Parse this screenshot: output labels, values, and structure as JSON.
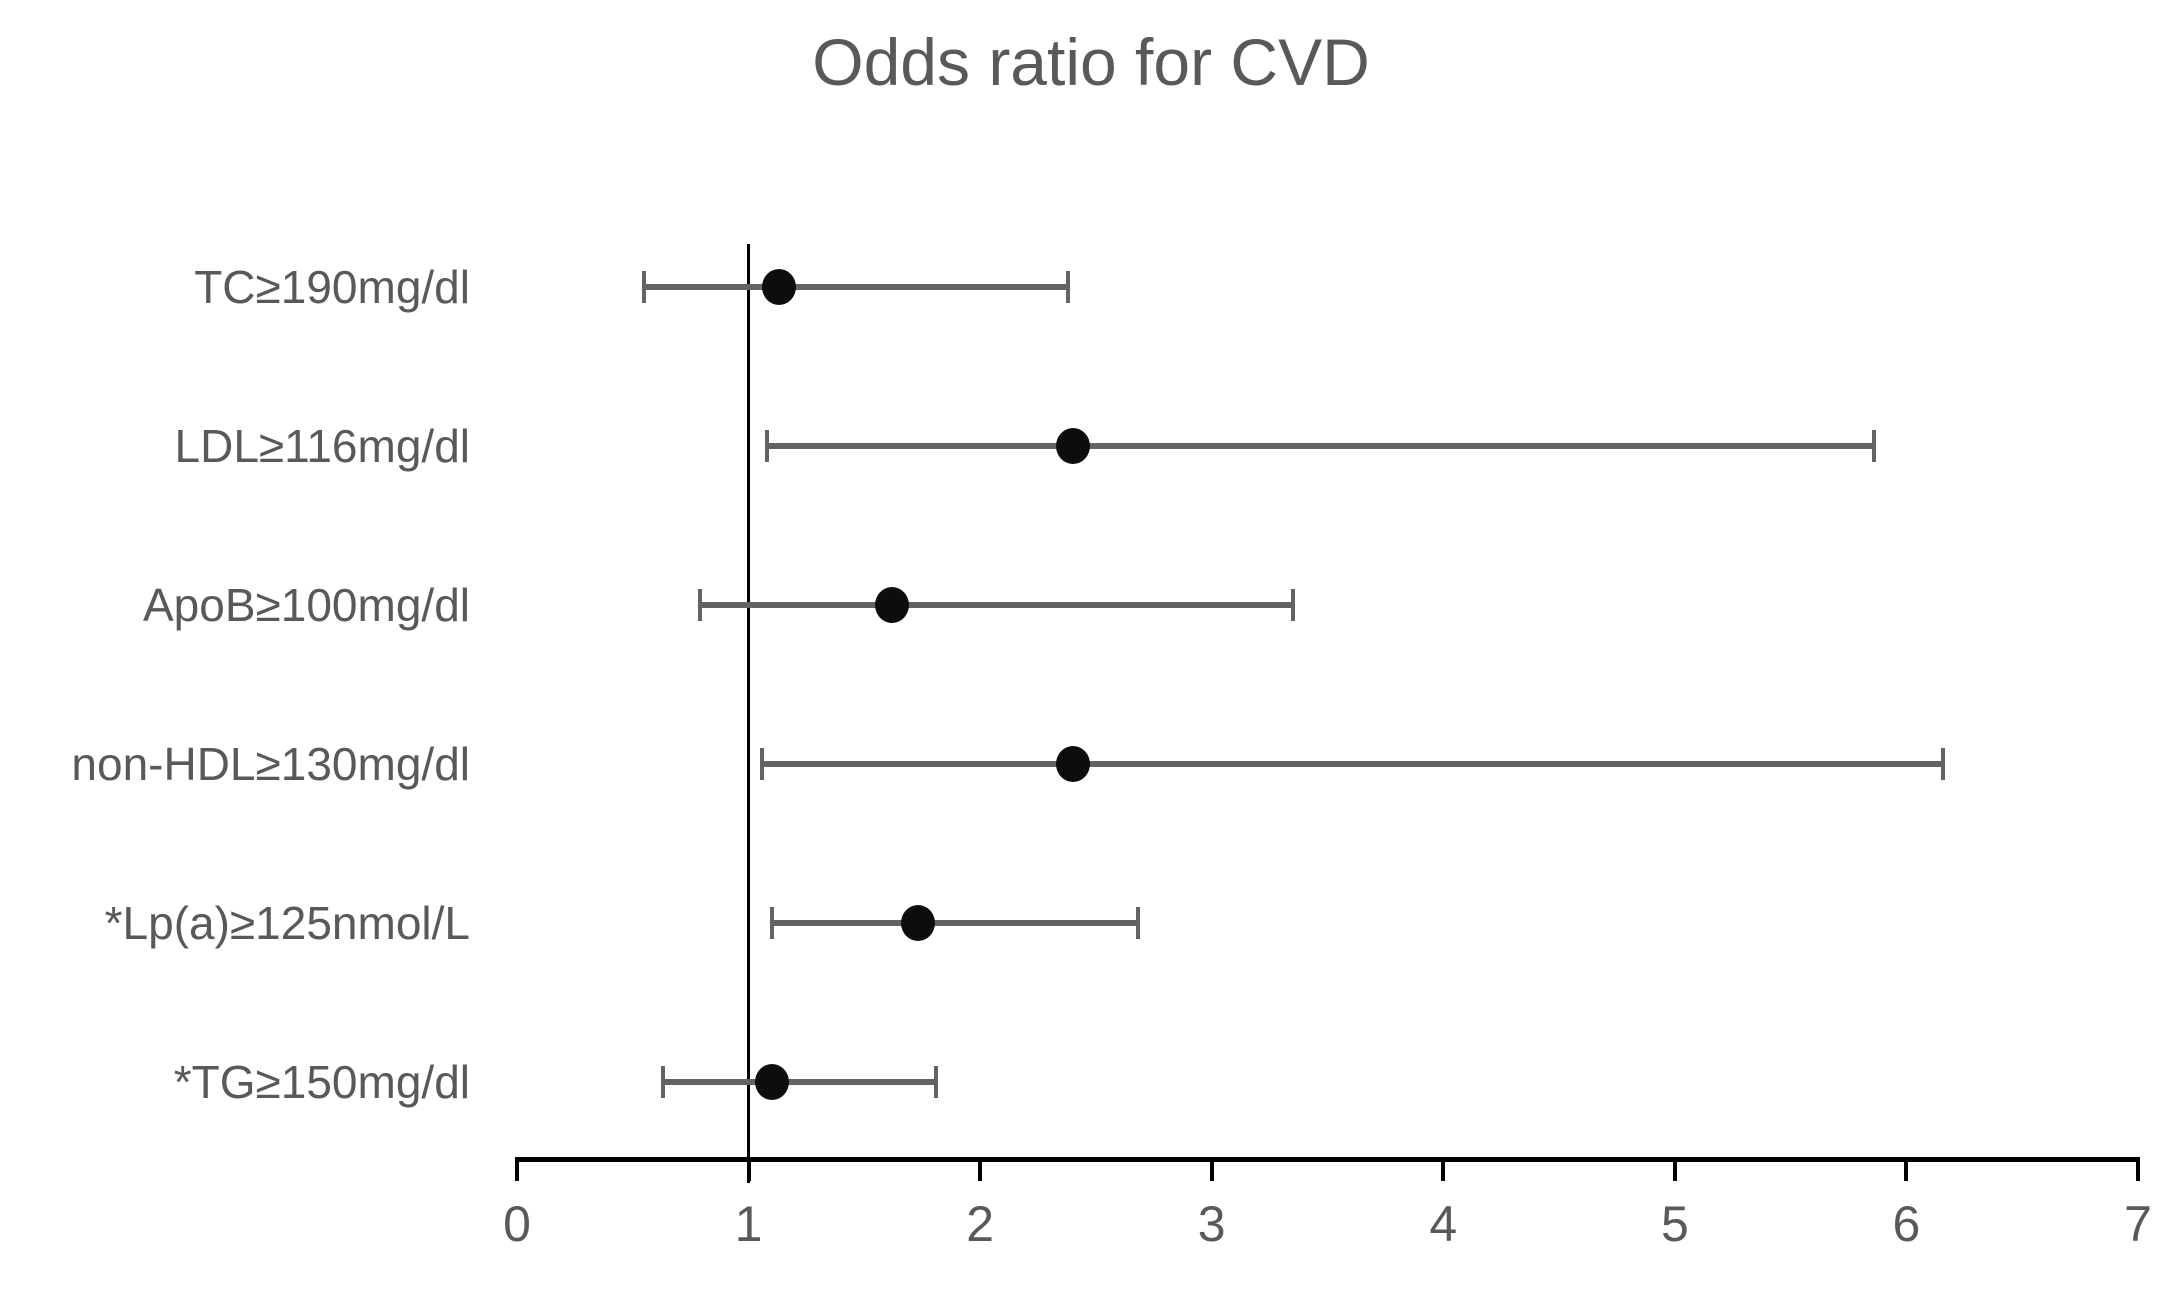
{
  "chart_data": {
    "type": "scatter",
    "subtype": "forest-plot-horizontal-error-bars",
    "title": "Odds ratio for CVD",
    "xlabel": "",
    "ylabel": "",
    "xlim": [
      0,
      7
    ],
    "x_ticks": [
      0,
      1,
      2,
      3,
      4,
      5,
      6,
      7
    ],
    "reference_line_x": 1,
    "grid": false,
    "legend": false,
    "categories": [
      "TC≥190mg/dl",
      "LDL≥116mg/dl",
      "ApoB≥100mg/dl",
      "non-HDL≥130mg/dl",
      "*Lp(a)≥125nmol/L",
      "*TG≥150mg/dl"
    ],
    "points": [
      {
        "category": "TC≥190mg/dl",
        "or": 1.13,
        "ci_low": 0.55,
        "ci_high": 2.38
      },
      {
        "category": "LDL≥116mg/dl",
        "or": 2.4,
        "ci_low": 1.08,
        "ci_high": 5.86
      },
      {
        "category": "ApoB≥100mg/dl",
        "or": 1.62,
        "ci_low": 0.79,
        "ci_high": 3.35
      },
      {
        "category": "non-HDL≥130mg/dl",
        "or": 2.4,
        "ci_low": 1.06,
        "ci_high": 6.16
      },
      {
        "category": "*Lp(a)≥125nmol/L",
        "or": 1.73,
        "ci_low": 1.1,
        "ci_high": 2.68
      },
      {
        "category": "*TG≥150mg/dl",
        "or": 1.1,
        "ci_low": 0.63,
        "ci_high": 1.81
      }
    ]
  },
  "colors": {
    "background": "#ffffff",
    "text": "#595959",
    "marker": "#0d0d0d",
    "error_bar": "#636363",
    "axis": "#000000",
    "reference_line": "#000000"
  }
}
